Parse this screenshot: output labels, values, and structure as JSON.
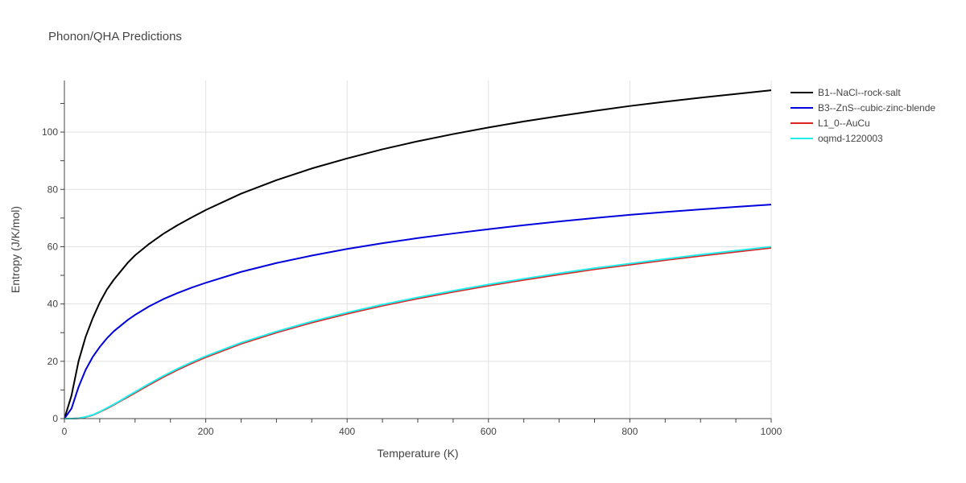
{
  "chart_data": {
    "type": "line",
    "title": "Phonon/QHA Predictions",
    "xlabel": "Temperature (K)",
    "ylabel": "Entropy (J/K/mol)",
    "xlim": [
      0,
      1000
    ],
    "ylim": [
      0,
      118
    ],
    "xticks": [
      0,
      200,
      400,
      600,
      800,
      1000
    ],
    "yticks": [
      0,
      20,
      40,
      60,
      80,
      100
    ],
    "grid": true,
    "legend_position": "top-right-outside",
    "x": [
      0,
      10,
      20,
      30,
      40,
      50,
      60,
      70,
      80,
      90,
      100,
      120,
      140,
      160,
      180,
      200,
      250,
      300,
      350,
      400,
      450,
      500,
      550,
      600,
      650,
      700,
      750,
      800,
      850,
      900,
      950,
      1000
    ],
    "series": [
      {
        "name": "B1--NaCl--rock-salt",
        "color": "#000000",
        "values": [
          0,
          8,
          20,
          28.5,
          35,
          40.5,
          45,
          48.5,
          51.5,
          54.5,
          57,
          61,
          64.5,
          67.5,
          70.2,
          72.8,
          78.5,
          83.2,
          87.3,
          90.8,
          94.0,
          96.8,
          99.3,
          101.6,
          103.7,
          105.6,
          107.4,
          109.1,
          110.6,
          112.0,
          113.3,
          114.6
        ]
      },
      {
        "name": "B3--ZnS--cubic-zinc-blende",
        "color": "#0000dd",
        "values": [
          0,
          3.5,
          11,
          17,
          21.5,
          25,
          28,
          30.5,
          32.5,
          34.5,
          36.2,
          39.2,
          41.7,
          43.8,
          45.7,
          47.4,
          51.2,
          54.3,
          56.9,
          59.2,
          61.2,
          63.0,
          64.6,
          66.1,
          67.5,
          68.8,
          70.0,
          71.1,
          72.1,
          73.0,
          73.9,
          74.7
        ]
      },
      {
        "name": "L1_0--AuCu",
        "color": "#dd2222",
        "values": [
          0,
          0,
          0.1,
          0.5,
          1.2,
          2.3,
          3.5,
          4.8,
          6.2,
          7.6,
          9.0,
          11.8,
          14.5,
          17.0,
          19.3,
          21.4,
          26.1,
          30.0,
          33.5,
          36.6,
          39.4,
          41.9,
          44.2,
          46.4,
          48.4,
          50.3,
          52.1,
          53.7,
          55.3,
          56.8,
          58.2,
          59.6
        ]
      },
      {
        "name": "oqmd-1220003",
        "color": "#22eeee",
        "values": [
          0,
          0,
          0.1,
          0.6,
          1.3,
          2.4,
          3.7,
          5.0,
          6.4,
          7.9,
          9.3,
          12.2,
          14.9,
          17.4,
          19.7,
          21.8,
          26.5,
          30.4,
          33.9,
          37.0,
          39.8,
          42.3,
          44.6,
          46.8,
          48.8,
          50.7,
          52.5,
          54.1,
          55.7,
          57.2,
          58.6,
          60.0
        ]
      }
    ]
  }
}
